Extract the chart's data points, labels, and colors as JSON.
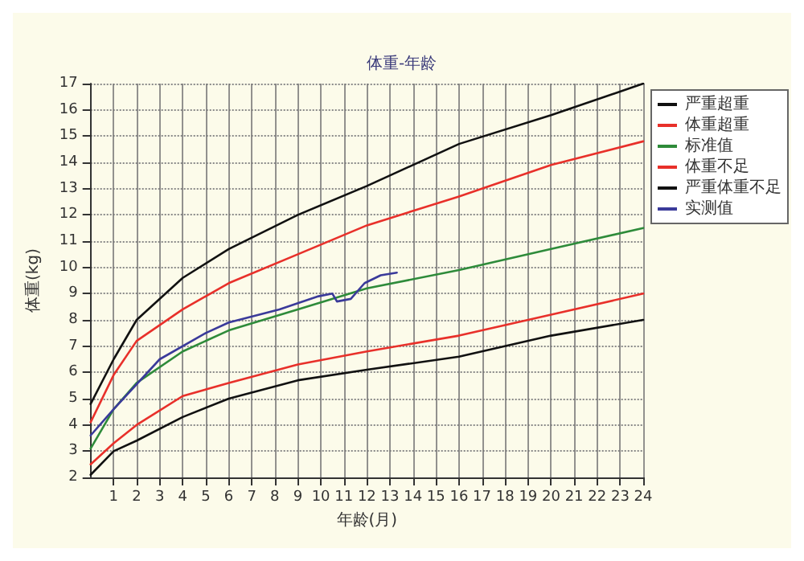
{
  "chart_data": {
    "type": "line",
    "title": "体重-年龄",
    "xlabel": "年龄(月)",
    "ylabel": "体重(kg)",
    "xlim": [
      0,
      24
    ],
    "xticks": [
      1,
      2,
      3,
      4,
      5,
      6,
      7,
      8,
      9,
      10,
      11,
      12,
      13,
      14,
      15,
      16,
      17,
      18,
      19,
      20,
      21,
      22,
      23,
      24
    ],
    "ylim": [
      2,
      17
    ],
    "yticks": [
      2,
      3,
      4,
      5,
      6,
      7,
      8,
      9,
      10,
      11,
      12,
      13,
      14,
      15,
      16,
      17
    ],
    "grid": true,
    "legend": "right",
    "marker": "none",
    "line_style": "solid",
    "series": [
      {
        "name": "严重超重",
        "color": "#111111",
        "x": [
          0,
          1,
          2,
          4,
          6,
          9,
          12,
          16,
          20,
          24
        ],
        "values": [
          4.8,
          6.5,
          8.0,
          9.6,
          10.7,
          12.0,
          13.1,
          14.7,
          15.8,
          17.0
        ]
      },
      {
        "name": "体重超重",
        "color": "#e8302a",
        "x": [
          0,
          1,
          2,
          4,
          6,
          9,
          12,
          16,
          20,
          24
        ],
        "values": [
          4.1,
          5.9,
          7.2,
          8.4,
          9.4,
          10.5,
          11.6,
          12.7,
          13.9,
          14.8
        ]
      },
      {
        "name": "标准值",
        "color": "#2e8b3a",
        "x": [
          0,
          1,
          2,
          4,
          6,
          9,
          12,
          16,
          20,
          24
        ],
        "values": [
          3.1,
          4.6,
          5.6,
          6.8,
          7.6,
          8.4,
          9.2,
          9.9,
          10.7,
          11.5
        ]
      },
      {
        "name": "体重不足",
        "color": "#e8302a",
        "x": [
          0,
          1,
          2,
          4,
          6,
          9,
          12,
          16,
          20,
          24
        ],
        "values": [
          2.5,
          3.3,
          4.0,
          5.1,
          5.6,
          6.3,
          6.8,
          7.4,
          8.2,
          9.0
        ]
      },
      {
        "name": "严重体重不足",
        "color": "#111111",
        "x": [
          0,
          1,
          2,
          4,
          6,
          9,
          12,
          16,
          20,
          24
        ],
        "values": [
          2.1,
          3.0,
          3.4,
          4.3,
          5.0,
          5.7,
          6.1,
          6.6,
          7.4,
          8.0
        ]
      },
      {
        "name": "实测值",
        "color": "#3a3a9a",
        "x": [
          0,
          1,
          3,
          5,
          6,
          8.2,
          9.9,
          10.5,
          10.7,
          11.3,
          11.9,
          12.6,
          13.3
        ],
        "values": [
          3.6,
          4.6,
          6.5,
          7.5,
          7.9,
          8.4,
          8.9,
          9.0,
          8.7,
          8.8,
          9.4,
          9.7,
          9.8
        ]
      }
    ]
  }
}
